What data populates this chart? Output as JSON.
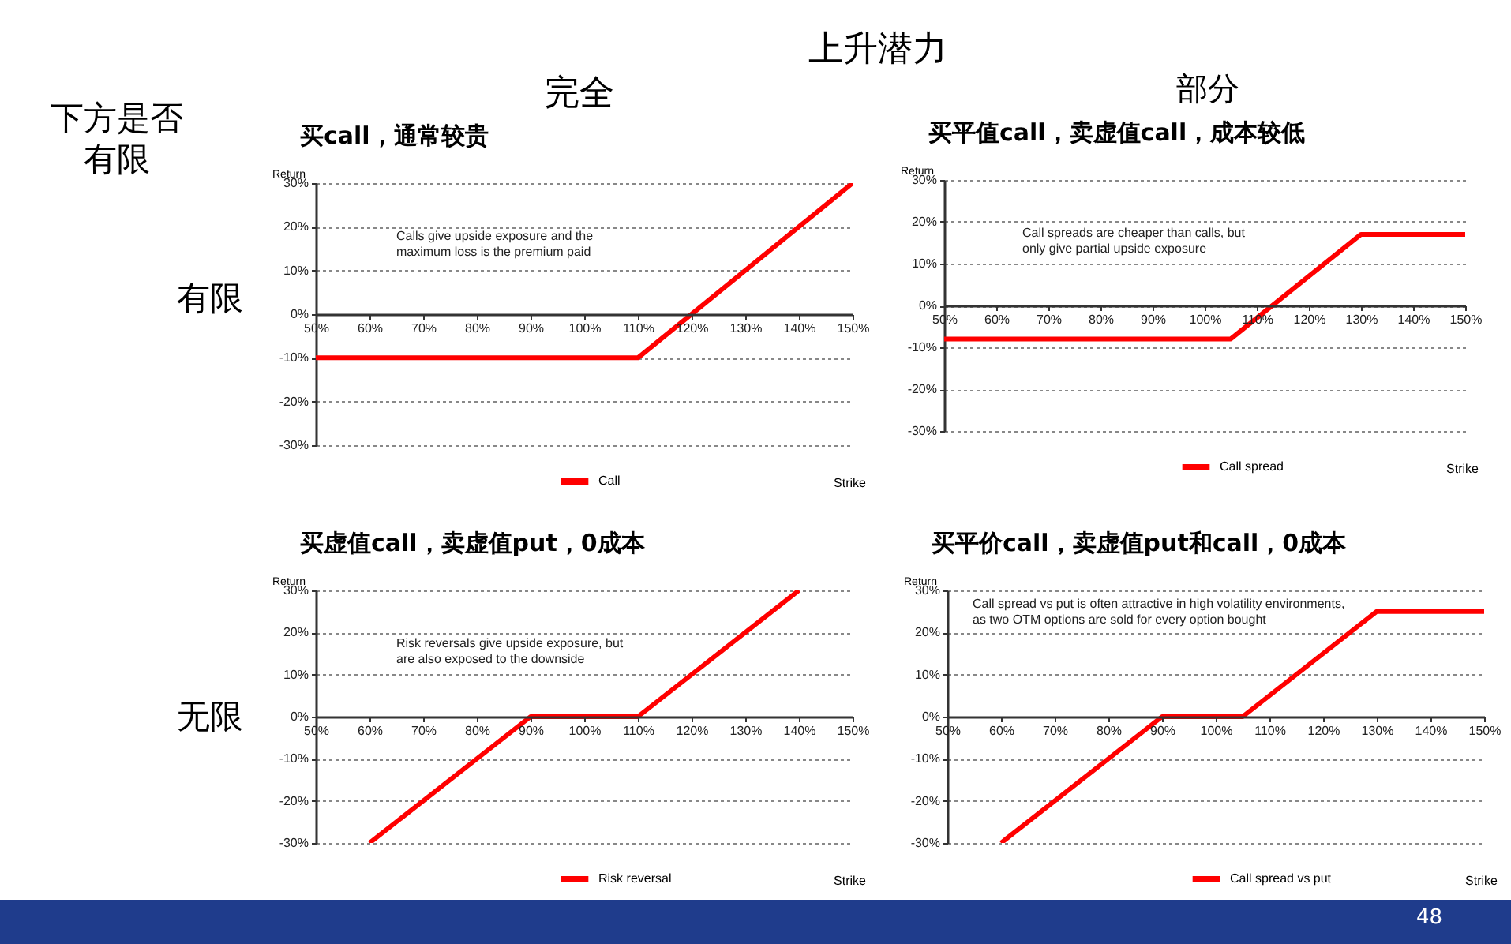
{
  "chart_data": [
    {
      "type": "other",
      "title": "上升潜力",
      "annotations": [
        "完全",
        "部分",
        "下方是否有限",
        "有限",
        "无限",
        "48"
      ]
    },
    {
      "type": "line",
      "title": "买call，通常较贵",
      "xlabel": "Strike",
      "ylabel": "Return",
      "legend": "bottom",
      "grid": "y",
      "annotations": [
        "Calls give upside exposure and the\nmaximum loss is the premium paid"
      ],
      "xlim": [
        50,
        150
      ],
      "ylim": [
        -30,
        30
      ],
      "xticks": [
        {
          "value": 50,
          "label": "50%"
        },
        {
          "value": 60,
          "label": "60%"
        },
        {
          "value": 70,
          "label": "70%"
        },
        {
          "value": 80,
          "label": "80%"
        },
        {
          "value": 90,
          "label": "90%"
        },
        {
          "value": 100,
          "label": "100%"
        },
        {
          "value": 110,
          "label": "110%"
        },
        {
          "value": 120,
          "label": "120%"
        },
        {
          "value": 130,
          "label": "130%"
        },
        {
          "value": 140,
          "label": "140%"
        },
        {
          "value": 150,
          "label": "150%"
        }
      ],
      "yticks": [
        {
          "value": -30,
          "label": "-30%"
        },
        {
          "value": -20,
          "label": "-20%"
        },
        {
          "value": -10,
          "label": "-10%"
        },
        {
          "value": 0,
          "label": "0%"
        },
        {
          "value": 10,
          "label": "10%"
        },
        {
          "value": 20,
          "label": "20%"
        },
        {
          "value": 30,
          "label": "30%"
        }
      ],
      "series": [
        {
          "name": "Call",
          "color": "#ff0000",
          "x": [
            50,
            110,
            150
          ],
          "values": [
            -10,
            -10,
            30
          ]
        }
      ]
    },
    {
      "type": "line",
      "title": "买平值call，卖虚值call，成本较低",
      "xlabel": "Strike",
      "ylabel": "Return",
      "legend": "bottom",
      "grid": "y",
      "annotations": [
        "Call spreads are  cheaper than calls, but\nonly give partial upside exposure"
      ],
      "xlim": [
        50,
        150
      ],
      "ylim": [
        -30,
        30
      ],
      "xticks": [
        {
          "value": 50,
          "label": "50%"
        },
        {
          "value": 60,
          "label": "60%"
        },
        {
          "value": 70,
          "label": "70%"
        },
        {
          "value": 80,
          "label": "80%"
        },
        {
          "value": 90,
          "label": "90%"
        },
        {
          "value": 100,
          "label": "100%"
        },
        {
          "value": 110,
          "label": "110%"
        },
        {
          "value": 120,
          "label": "120%"
        },
        {
          "value": 130,
          "label": "130%"
        },
        {
          "value": 140,
          "label": "140%"
        },
        {
          "value": 150,
          "label": "150%"
        }
      ],
      "yticks": [
        {
          "value": -30,
          "label": "-30%"
        },
        {
          "value": -20,
          "label": "-20%"
        },
        {
          "value": -10,
          "label": "-10%"
        },
        {
          "value": 0,
          "label": "0%"
        },
        {
          "value": 10,
          "label": "10%"
        },
        {
          "value": 20,
          "label": "20%"
        },
        {
          "value": 30,
          "label": "30%"
        }
      ],
      "series": [
        {
          "name": "Call spread",
          "color": "#ff0000",
          "x": [
            50,
            105,
            130,
            150
          ],
          "values": [
            -8,
            -8,
            17,
            17
          ]
        }
      ]
    },
    {
      "type": "line",
      "title": "买虚值call，卖虚值put，0成本",
      "xlabel": "Strike",
      "ylabel": "Return",
      "legend": "bottom",
      "grid": "y",
      "annotations": [
        "Risk reversals give upside exposure, but\nare also exposed to the downside"
      ],
      "xlim": [
        50,
        150
      ],
      "ylim": [
        -30,
        30
      ],
      "xticks": [
        {
          "value": 50,
          "label": "50%"
        },
        {
          "value": 60,
          "label": "60%"
        },
        {
          "value": 70,
          "label": "70%"
        },
        {
          "value": 80,
          "label": "80%"
        },
        {
          "value": 90,
          "label": "90%"
        },
        {
          "value": 100,
          "label": "100%"
        },
        {
          "value": 110,
          "label": "110%"
        },
        {
          "value": 120,
          "label": "120%"
        },
        {
          "value": 130,
          "label": "130%"
        },
        {
          "value": 140,
          "label": "140%"
        },
        {
          "value": 150,
          "label": "150%"
        }
      ],
      "yticks": [
        {
          "value": -30,
          "label": "-30%"
        },
        {
          "value": -20,
          "label": "-20%"
        },
        {
          "value": -10,
          "label": "-10%"
        },
        {
          "value": 0,
          "label": "0%"
        },
        {
          "value": 10,
          "label": "10%"
        },
        {
          "value": 20,
          "label": "20%"
        },
        {
          "value": 30,
          "label": "30%"
        }
      ],
      "series": [
        {
          "name": "Risk reversal",
          "color": "#ff0000",
          "x": [
            60,
            90,
            110,
            140
          ],
          "values": [
            -30,
            0,
            0,
            30
          ]
        }
      ]
    },
    {
      "type": "line",
      "title": "买平价call，卖虚值put和call，0成本",
      "xlabel": "Strike",
      "ylabel": "Return",
      "legend": "bottom",
      "grid": "y",
      "annotations": [
        "Call spread vs put is often attractive in high volatility environments,\nas two OTM options are sold for every option bought"
      ],
      "xlim": [
        50,
        150
      ],
      "ylim": [
        -30,
        30
      ],
      "xticks": [
        {
          "value": 50,
          "label": "50%"
        },
        {
          "value": 60,
          "label": "60%"
        },
        {
          "value": 70,
          "label": "70%"
        },
        {
          "value": 80,
          "label": "80%"
        },
        {
          "value": 90,
          "label": "90%"
        },
        {
          "value": 100,
          "label": "100%"
        },
        {
          "value": 110,
          "label": "110%"
        },
        {
          "value": 120,
          "label": "120%"
        },
        {
          "value": 130,
          "label": "130%"
        },
        {
          "value": 140,
          "label": "140%"
        },
        {
          "value": 150,
          "label": "150%"
        }
      ],
      "yticks": [
        {
          "value": -30,
          "label": "-30%"
        },
        {
          "value": -20,
          "label": "-20%"
        },
        {
          "value": -10,
          "label": "-10%"
        },
        {
          "value": 0,
          "label": "0%"
        },
        {
          "value": 10,
          "label": "10%"
        },
        {
          "value": 20,
          "label": "20%"
        },
        {
          "value": 30,
          "label": "30%"
        }
      ],
      "series": [
        {
          "name": "Call spread vs put",
          "color": "#ff0000",
          "x": [
            60,
            90,
            105,
            130,
            150
          ],
          "values": [
            -30,
            0,
            0,
            25,
            25
          ]
        }
      ]
    }
  ]
}
